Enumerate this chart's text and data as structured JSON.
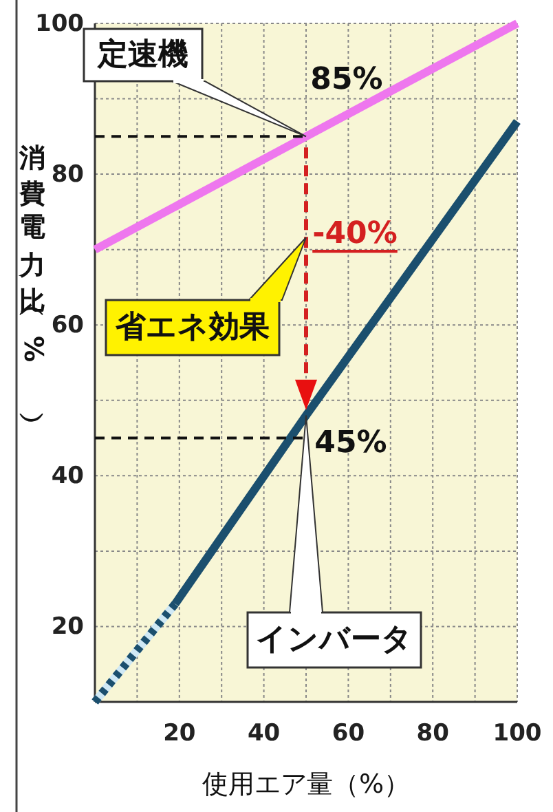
{
  "chart_data": {
    "type": "line",
    "xlabel": "使用エア量（%）",
    "ylabel": "消費電力比（%）",
    "xlim": [
      0,
      100
    ],
    "ylim": [
      10,
      100
    ],
    "xticks": [
      {
        "value": 0,
        "label": null
      },
      {
        "value": 10,
        "label": null
      },
      20,
      {
        "value": 30,
        "label": null
      },
      40,
      {
        "value": 50,
        "label": null
      },
      60,
      {
        "value": 70,
        "label": null
      },
      80,
      {
        "value": 90,
        "label": null
      },
      100
    ],
    "yticks": [
      {
        "value": 10,
        "label": null
      },
      20,
      {
        "value": 30,
        "label": null
      },
      40,
      {
        "value": 50,
        "label": null
      },
      60,
      {
        "value": 70,
        "label": null
      },
      80,
      {
        "value": 90,
        "label": null
      },
      100
    ],
    "grid": true,
    "series": [
      {
        "name": "定速機",
        "x": [
          0,
          100
        ],
        "values": [
          70,
          100
        ],
        "color": "#ee77ee",
        "line_style": "solid"
      },
      {
        "x": [
          0,
          19
        ],
        "values": [
          10,
          23
        ],
        "color": "#1b4f6e",
        "line_style": "dotted"
      },
      {
        "name": "インバータ",
        "x": [
          19,
          50,
          100
        ],
        "values": [
          23,
          48,
          87
        ],
        "color": "#1b4f6e",
        "line_style": "solid"
      },
      {
        "x": [
          0,
          50
        ],
        "values": [
          85,
          85
        ],
        "color": "#111111",
        "line_style": "dashed"
      },
      {
        "x": [
          0,
          50
        ],
        "values": [
          45,
          45
        ],
        "color": "#111111",
        "line_style": "dashed"
      }
    ],
    "annotations": [
      "85%",
      "-40%",
      "省エネ効果",
      "45%"
    ]
  }
}
